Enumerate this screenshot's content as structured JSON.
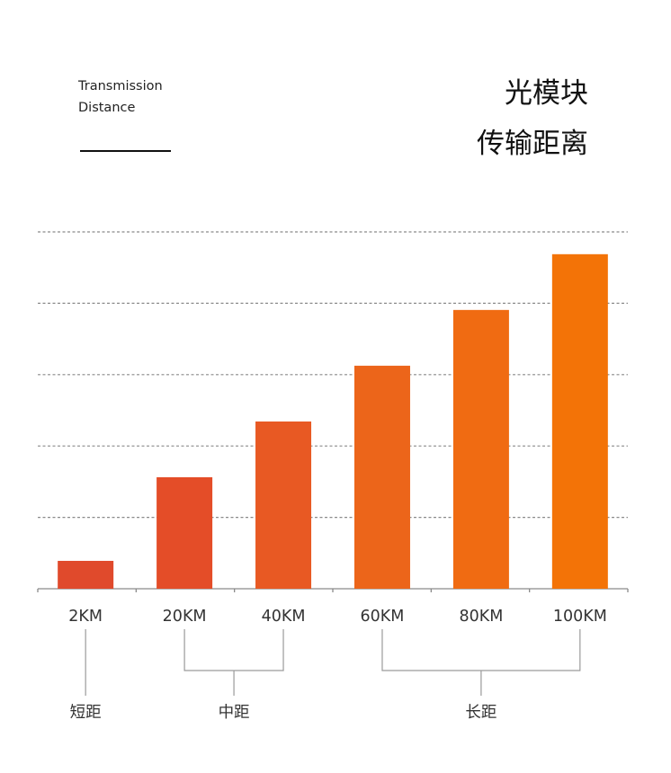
{
  "header": {
    "en_title_line1": "Transmission",
    "en_title_line2": "Distance",
    "cn_title_line1": "光模块",
    "cn_title_line2": "传输距离"
  },
  "chart_data": {
    "type": "bar",
    "categories": [
      "2KM",
      "20KM",
      "40KM",
      "60KM",
      "80KM",
      "100KM"
    ],
    "values": [
      0.5,
      2,
      3,
      4,
      5,
      6
    ],
    "ylim": [
      0,
      6.4
    ],
    "grid": true,
    "groups": [
      {
        "label": "短距",
        "categories": [
          "2KM"
        ]
      },
      {
        "label": "中距",
        "categories": [
          "20KM",
          "40KM"
        ]
      },
      {
        "label": "长距",
        "categories": [
          "60KM",
          "80KM",
          "100KM"
        ]
      }
    ],
    "colors": [
      "#e04a2c",
      "#e44d28",
      "#e85923",
      "#ec651a",
      "#f06b12",
      "#f37307"
    ]
  }
}
